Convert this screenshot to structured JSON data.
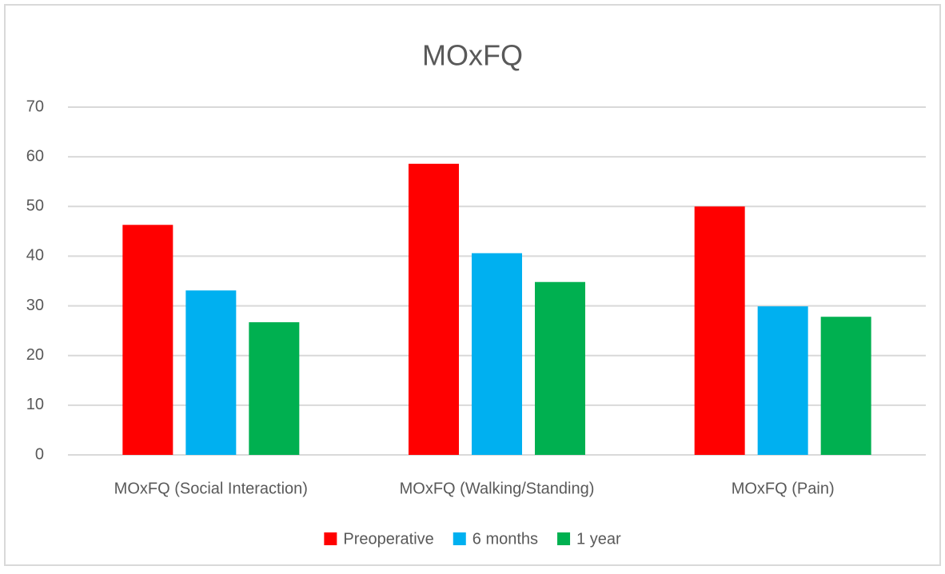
{
  "chart_data": {
    "type": "bar",
    "title": "MOxFQ",
    "categories": [
      "MOxFQ (Social Interaction)",
      "MOxFQ (Walking/Standing)",
      "MOxFQ (Pain)"
    ],
    "series": [
      {
        "name": "Preoperative",
        "color": "#ff0000",
        "values": [
          46.3,
          58.6,
          50.0
        ]
      },
      {
        "name": "6 months",
        "color": "#00b0f0",
        "values": [
          33.1,
          40.6,
          29.9
        ]
      },
      {
        "name": "1 year",
        "color": "#00b050",
        "values": [
          26.7,
          34.8,
          27.8
        ]
      }
    ],
    "ylim": [
      0,
      70
    ],
    "yticks": [
      0,
      10,
      20,
      30,
      40,
      50,
      60,
      70
    ],
    "grid": true,
    "legend": "bottom"
  }
}
